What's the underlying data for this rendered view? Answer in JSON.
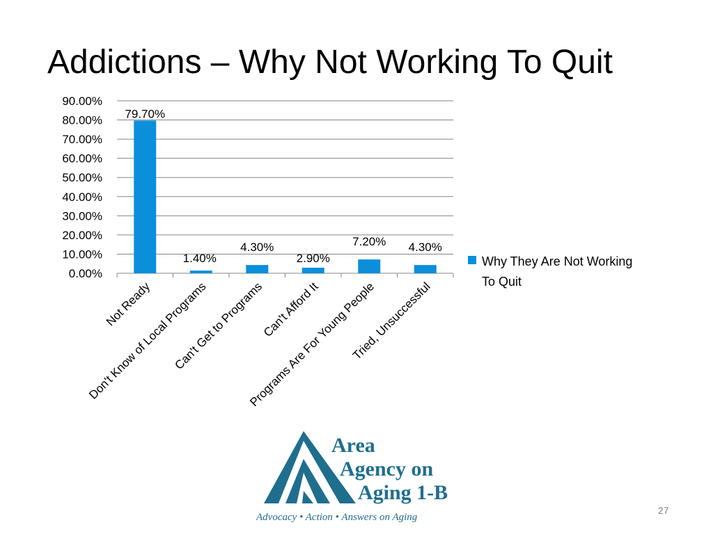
{
  "slide": {
    "title": "Addictions – Why Not Working To Quit",
    "page_number": "27"
  },
  "colors": {
    "bar": "#0B8FDB",
    "gridline": "#868686",
    "logo": "#1F6E8E"
  },
  "chart_data": {
    "type": "bar",
    "title": "",
    "xlabel": "",
    "ylabel": "",
    "categories": [
      "Not Ready",
      "Don't Know of Local Programs",
      "Can't Get to Programs",
      "Can't Afford It",
      "Programs Are For Young People",
      "Tried, Unsuccessful"
    ],
    "series": [
      {
        "name": "Why They Are Not Working To Quit",
        "values": [
          79.7,
          1.4,
          4.3,
          2.9,
          7.2,
          4.3
        ],
        "labels": [
          "79.70%",
          "1.40%",
          "4.30%",
          "2.90%",
          "7.20%",
          "4.30%"
        ]
      }
    ],
    "ylim": [
      0,
      90
    ],
    "yticks": [
      "0.00%",
      "10.00%",
      "20.00%",
      "30.00%",
      "40.00%",
      "50.00%",
      "60.00%",
      "70.00%",
      "80.00%",
      "90.00%"
    ],
    "grid": true,
    "legend_position": "right"
  },
  "logo": {
    "line1": "Area",
    "line2": "Agency on",
    "line3": "Aging 1-B",
    "tagline": "Advocacy • Action • Answers on Aging"
  }
}
